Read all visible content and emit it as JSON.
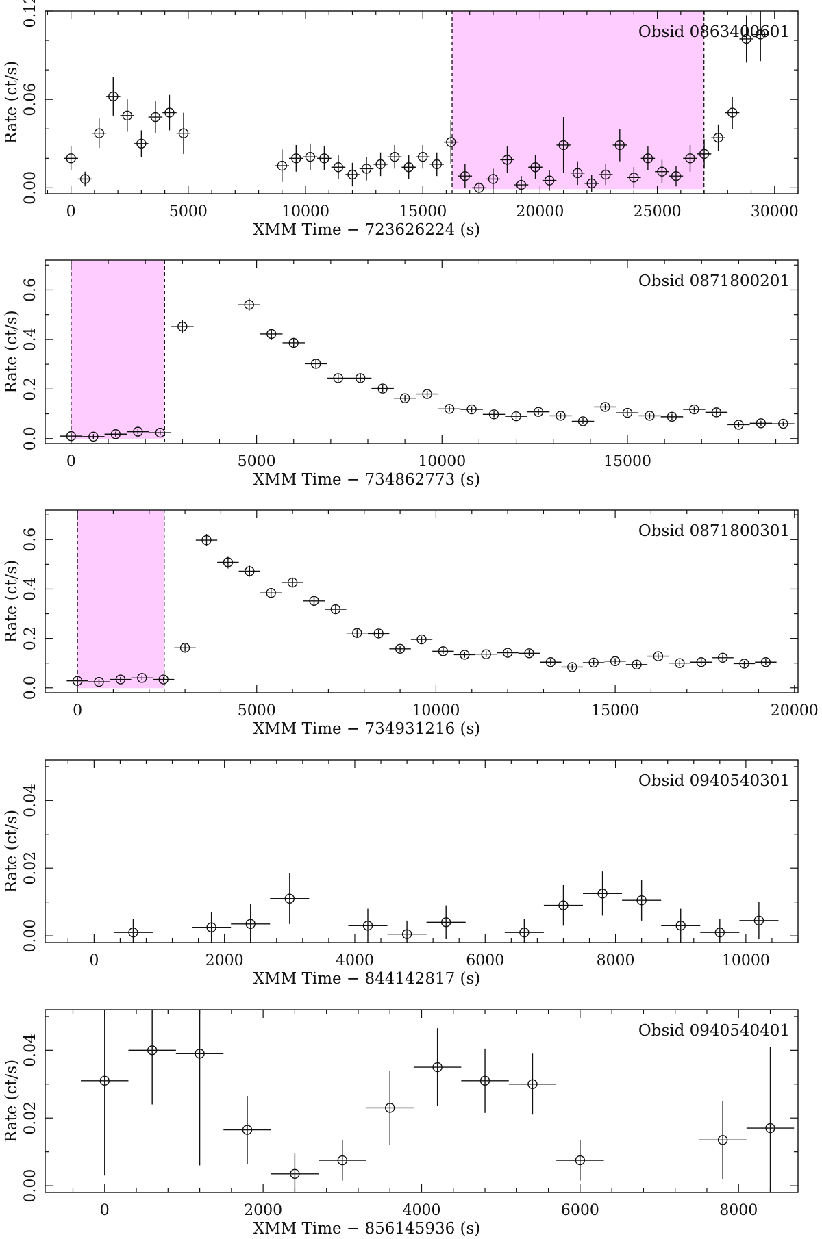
{
  "chart_data": [
    {
      "type": "scatter",
      "annotation": "Obsid 0863400601",
      "xlabel": "XMM Time − 723626224 (s)",
      "ylabel": "Rate (ct/s)",
      "xlim": [
        -1100,
        31000
      ],
      "ylim": [
        -0.004,
        0.12
      ],
      "xticks": [
        0,
        5000,
        10000,
        15000,
        20000,
        25000,
        30000
      ],
      "yticks": [
        0.0,
        0.06,
        0.12
      ],
      "ytick_labels": [
        "0.00",
        "0.06",
        "0.12"
      ],
      "yminor": [
        0.02,
        0.04,
        0.08,
        0.1
      ],
      "shaded_interval": [
        16250,
        26990
      ],
      "x_err": 300,
      "points": [
        {
          "x": 0,
          "y": 0.02,
          "e": 0.008
        },
        {
          "x": 600,
          "y": 0.006,
          "e": 0.005
        },
        {
          "x": 1200,
          "y": 0.037,
          "e": 0.01
        },
        {
          "x": 1800,
          "y": 0.062,
          "e": 0.013
        },
        {
          "x": 2400,
          "y": 0.049,
          "e": 0.011
        },
        {
          "x": 3000,
          "y": 0.03,
          "e": 0.009
        },
        {
          "x": 3600,
          "y": 0.048,
          "e": 0.011
        },
        {
          "x": 4200,
          "y": 0.051,
          "e": 0.012
        },
        {
          "x": 4800,
          "y": 0.037,
          "e": 0.014
        },
        {
          "x": 9000,
          "y": 0.015,
          "e": 0.011
        },
        {
          "x": 9600,
          "y": 0.02,
          "e": 0.009
        },
        {
          "x": 10200,
          "y": 0.021,
          "e": 0.009
        },
        {
          "x": 10800,
          "y": 0.02,
          "e": 0.008
        },
        {
          "x": 11400,
          "y": 0.014,
          "e": 0.008
        },
        {
          "x": 12000,
          "y": 0.009,
          "e": 0.008
        },
        {
          "x": 12600,
          "y": 0.013,
          "e": 0.008
        },
        {
          "x": 13200,
          "y": 0.016,
          "e": 0.008
        },
        {
          "x": 13800,
          "y": 0.021,
          "e": 0.008
        },
        {
          "x": 14400,
          "y": 0.014,
          "e": 0.008
        },
        {
          "x": 15000,
          "y": 0.021,
          "e": 0.008
        },
        {
          "x": 15600,
          "y": 0.016,
          "e": 0.008
        },
        {
          "x": 16200,
          "y": 0.031,
          "e": 0.015
        },
        {
          "x": 16800,
          "y": 0.008,
          "e": 0.008
        },
        {
          "x": 17400,
          "y": 0.0,
          "e": 0.004
        },
        {
          "x": 18000,
          "y": 0.006,
          "e": 0.007
        },
        {
          "x": 18600,
          "y": 0.019,
          "e": 0.009
        },
        {
          "x": 19200,
          "y": 0.002,
          "e": 0.006
        },
        {
          "x": 19800,
          "y": 0.014,
          "e": 0.008
        },
        {
          "x": 20400,
          "y": 0.005,
          "e": 0.007
        },
        {
          "x": 21000,
          "y": 0.029,
          "e": 0.019
        },
        {
          "x": 21600,
          "y": 0.01,
          "e": 0.008
        },
        {
          "x": 22200,
          "y": 0.003,
          "e": 0.006
        },
        {
          "x": 22800,
          "y": 0.009,
          "e": 0.007
        },
        {
          "x": 23400,
          "y": 0.029,
          "e": 0.011
        },
        {
          "x": 24000,
          "y": 0.007,
          "e": 0.007
        },
        {
          "x": 24600,
          "y": 0.02,
          "e": 0.008
        },
        {
          "x": 25200,
          "y": 0.011,
          "e": 0.008
        },
        {
          "x": 25800,
          "y": 0.008,
          "e": 0.007
        },
        {
          "x": 26400,
          "y": 0.02,
          "e": 0.009
        },
        {
          "x": 27000,
          "y": 0.023,
          "e": 0.01
        },
        {
          "x": 27600,
          "y": 0.034,
          "e": 0.009
        },
        {
          "x": 28200,
          "y": 0.051,
          "e": 0.011
        },
        {
          "x": 28800,
          "y": 0.101,
          "e": 0.016
        },
        {
          "x": 29400,
          "y": 0.104,
          "e": 0.018
        }
      ]
    },
    {
      "type": "scatter",
      "annotation": "Obsid 0871800201",
      "xlabel": "XMM Time − 734862773 (s)",
      "ylabel": "Rate (ct/s)",
      "xlim": [
        -700,
        19600
      ],
      "ylim": [
        -0.02,
        0.72
      ],
      "xticks": [
        0,
        5000,
        10000,
        15000
      ],
      "yticks": [
        0.0,
        0.2,
        0.4,
        0.6
      ],
      "ytick_labels": [
        "0.0",
        "0.2",
        "0.4",
        "0.6"
      ],
      "yminor": [
        0.1,
        0.3,
        0.5,
        0.7
      ],
      "shaded_interval": [
        0,
        2520
      ],
      "x_err": 300,
      "points": [
        {
          "x": 0,
          "y": 0.01,
          "e": 0.01
        },
        {
          "x": 600,
          "y": 0.008,
          "e": 0.01
        },
        {
          "x": 1200,
          "y": 0.018,
          "e": 0.01
        },
        {
          "x": 1800,
          "y": 0.028,
          "e": 0.01
        },
        {
          "x": 2400,
          "y": 0.024,
          "e": 0.01
        },
        {
          "x": 3000,
          "y": 0.452,
          "e": 0.025
        },
        {
          "x": 4800,
          "y": 0.54,
          "e": 0.025
        },
        {
          "x": 5400,
          "y": 0.422,
          "e": 0.022
        },
        {
          "x": 6000,
          "y": 0.386,
          "e": 0.02
        },
        {
          "x": 6600,
          "y": 0.302,
          "e": 0.018
        },
        {
          "x": 7200,
          "y": 0.244,
          "e": 0.015
        },
        {
          "x": 7800,
          "y": 0.244,
          "e": 0.015
        },
        {
          "x": 8400,
          "y": 0.202,
          "e": 0.015
        },
        {
          "x": 9000,
          "y": 0.163,
          "e": 0.013
        },
        {
          "x": 9600,
          "y": 0.18,
          "e": 0.013
        },
        {
          "x": 10200,
          "y": 0.12,
          "e": 0.012
        },
        {
          "x": 10800,
          "y": 0.118,
          "e": 0.012
        },
        {
          "x": 11400,
          "y": 0.098,
          "e": 0.012
        },
        {
          "x": 12000,
          "y": 0.09,
          "e": 0.012
        },
        {
          "x": 12600,
          "y": 0.108,
          "e": 0.012
        },
        {
          "x": 13200,
          "y": 0.092,
          "e": 0.012
        },
        {
          "x": 13800,
          "y": 0.07,
          "e": 0.012
        },
        {
          "x": 14400,
          "y": 0.128,
          "e": 0.012
        },
        {
          "x": 15000,
          "y": 0.104,
          "e": 0.012
        },
        {
          "x": 15600,
          "y": 0.092,
          "e": 0.012
        },
        {
          "x": 16200,
          "y": 0.088,
          "e": 0.012
        },
        {
          "x": 16800,
          "y": 0.118,
          "e": 0.012
        },
        {
          "x": 17400,
          "y": 0.106,
          "e": 0.012
        },
        {
          "x": 18000,
          "y": 0.056,
          "e": 0.01
        },
        {
          "x": 18600,
          "y": 0.062,
          "e": 0.01
        },
        {
          "x": 19200,
          "y": 0.06,
          "e": 0.01
        }
      ]
    },
    {
      "type": "scatter",
      "annotation": "Obsid 0871800301",
      "xlabel": "XMM Time − 734931216 (s)",
      "ylabel": "Rate (ct/s)",
      "xlim": [
        -900,
        20100
      ],
      "ylim": [
        -0.02,
        0.72
      ],
      "xticks": [
        0,
        5000,
        10000,
        15000,
        20000
      ],
      "yticks": [
        0.0,
        0.2,
        0.4,
        0.6
      ],
      "ytick_labels": [
        "0.0",
        "0.2",
        "0.4",
        "0.6"
      ],
      "yminor": [
        0.1,
        0.3,
        0.5,
        0.7
      ],
      "shaded_interval": [
        0,
        2420
      ],
      "x_err": 300,
      "points": [
        {
          "x": 0,
          "y": 0.028,
          "e": 0.01
        },
        {
          "x": 600,
          "y": 0.024,
          "e": 0.01
        },
        {
          "x": 1200,
          "y": 0.034,
          "e": 0.01
        },
        {
          "x": 1800,
          "y": 0.04,
          "e": 0.01
        },
        {
          "x": 2400,
          "y": 0.034,
          "e": 0.01
        },
        {
          "x": 3000,
          "y": 0.162,
          "e": 0.015
        },
        {
          "x": 3600,
          "y": 0.598,
          "e": 0.025
        },
        {
          "x": 4200,
          "y": 0.508,
          "e": 0.025
        },
        {
          "x": 4800,
          "y": 0.472,
          "e": 0.022
        },
        {
          "x": 5400,
          "y": 0.384,
          "e": 0.02
        },
        {
          "x": 6000,
          "y": 0.426,
          "e": 0.02
        },
        {
          "x": 6600,
          "y": 0.352,
          "e": 0.02
        },
        {
          "x": 7200,
          "y": 0.318,
          "e": 0.018
        },
        {
          "x": 7800,
          "y": 0.222,
          "e": 0.015
        },
        {
          "x": 8400,
          "y": 0.22,
          "e": 0.015
        },
        {
          "x": 9000,
          "y": 0.158,
          "e": 0.013
        },
        {
          "x": 9600,
          "y": 0.196,
          "e": 0.013
        },
        {
          "x": 10200,
          "y": 0.148,
          "e": 0.012
        },
        {
          "x": 10800,
          "y": 0.134,
          "e": 0.012
        },
        {
          "x": 11400,
          "y": 0.136,
          "e": 0.012
        },
        {
          "x": 12000,
          "y": 0.142,
          "e": 0.012
        },
        {
          "x": 12600,
          "y": 0.14,
          "e": 0.012
        },
        {
          "x": 13200,
          "y": 0.104,
          "e": 0.012
        },
        {
          "x": 13800,
          "y": 0.084,
          "e": 0.012
        },
        {
          "x": 14400,
          "y": 0.102,
          "e": 0.012
        },
        {
          "x": 15000,
          "y": 0.108,
          "e": 0.012
        },
        {
          "x": 15600,
          "y": 0.094,
          "e": 0.012
        },
        {
          "x": 16200,
          "y": 0.128,
          "e": 0.012
        },
        {
          "x": 16800,
          "y": 0.1,
          "e": 0.012
        },
        {
          "x": 17400,
          "y": 0.104,
          "e": 0.012
        },
        {
          "x": 18000,
          "y": 0.122,
          "e": 0.012
        },
        {
          "x": 18600,
          "y": 0.098,
          "e": 0.012
        },
        {
          "x": 19200,
          "y": 0.104,
          "e": 0.012
        }
      ]
    },
    {
      "type": "scatter",
      "annotation": "Obsid 0940540301",
      "xlabel": "XMM Time − 844142817 (s)",
      "ylabel": "Rate (ct/s)",
      "xlim": [
        -750,
        10800
      ],
      "ylim": [
        -0.002,
        0.052
      ],
      "xticks": [
        0,
        2000,
        4000,
        6000,
        8000,
        10000
      ],
      "yticks": [
        0.0,
        0.02,
        0.04
      ],
      "ytick_labels": [
        "0.00",
        "0.02",
        "0.04"
      ],
      "yminor": [
        0.01,
        0.03,
        0.05
      ],
      "x_err": 300,
      "points": [
        {
          "x": 600,
          "y": 0.001,
          "e": 0.004
        },
        {
          "x": 1800,
          "y": 0.0025,
          "e": 0.0045
        },
        {
          "x": 2400,
          "y": 0.0035,
          "e": 0.006
        },
        {
          "x": 3000,
          "y": 0.011,
          "e": 0.0075
        },
        {
          "x": 4200,
          "y": 0.003,
          "e": 0.005
        },
        {
          "x": 4800,
          "y": 0.0005,
          "e": 0.004
        },
        {
          "x": 5400,
          "y": 0.004,
          "e": 0.005
        },
        {
          "x": 6600,
          "y": 0.001,
          "e": 0.004
        },
        {
          "x": 7200,
          "y": 0.009,
          "e": 0.006
        },
        {
          "x": 7800,
          "y": 0.0125,
          "e": 0.0065
        },
        {
          "x": 8400,
          "y": 0.0105,
          "e": 0.006
        },
        {
          "x": 9000,
          "y": 0.003,
          "e": 0.005
        },
        {
          "x": 9600,
          "y": 0.001,
          "e": 0.004
        },
        {
          "x": 10200,
          "y": 0.0045,
          "e": 0.0055
        }
      ]
    },
    {
      "type": "scatter",
      "annotation": "Obsid 0940540401",
      "xlabel": "XMM Time − 856145936 (s)",
      "ylabel": "Rate (ct/s)",
      "xlim": [
        -750,
        8750
      ],
      "ylim": [
        -0.002,
        0.052
      ],
      "xticks": [
        0,
        2000,
        4000,
        6000,
        8000
      ],
      "yticks": [
        0.0,
        0.02,
        0.04
      ],
      "ytick_labels": [
        "0.00",
        "0.02",
        "0.04"
      ],
      "yminor": [
        0.01,
        0.03,
        0.05
      ],
      "x_err": 300,
      "points": [
        {
          "x": 0,
          "y": 0.031,
          "e": 0.028
        },
        {
          "x": 600,
          "y": 0.04,
          "e": 0.016
        },
        {
          "x": 1200,
          "y": 0.039,
          "e": 0.033
        },
        {
          "x": 1800,
          "y": 0.0165,
          "e": 0.01
        },
        {
          "x": 2400,
          "y": 0.0035,
          "e": 0.006
        },
        {
          "x": 3000,
          "y": 0.0075,
          "e": 0.006
        },
        {
          "x": 3600,
          "y": 0.023,
          "e": 0.011
        },
        {
          "x": 4200,
          "y": 0.035,
          "e": 0.0115
        },
        {
          "x": 4800,
          "y": 0.031,
          "e": 0.0095
        },
        {
          "x": 5400,
          "y": 0.03,
          "e": 0.009
        },
        {
          "x": 6000,
          "y": 0.0075,
          "e": 0.006
        },
        {
          "x": 7800,
          "y": 0.0135,
          "e": 0.0115
        },
        {
          "x": 8400,
          "y": 0.017,
          "e": 0.024
        }
      ]
    }
  ]
}
